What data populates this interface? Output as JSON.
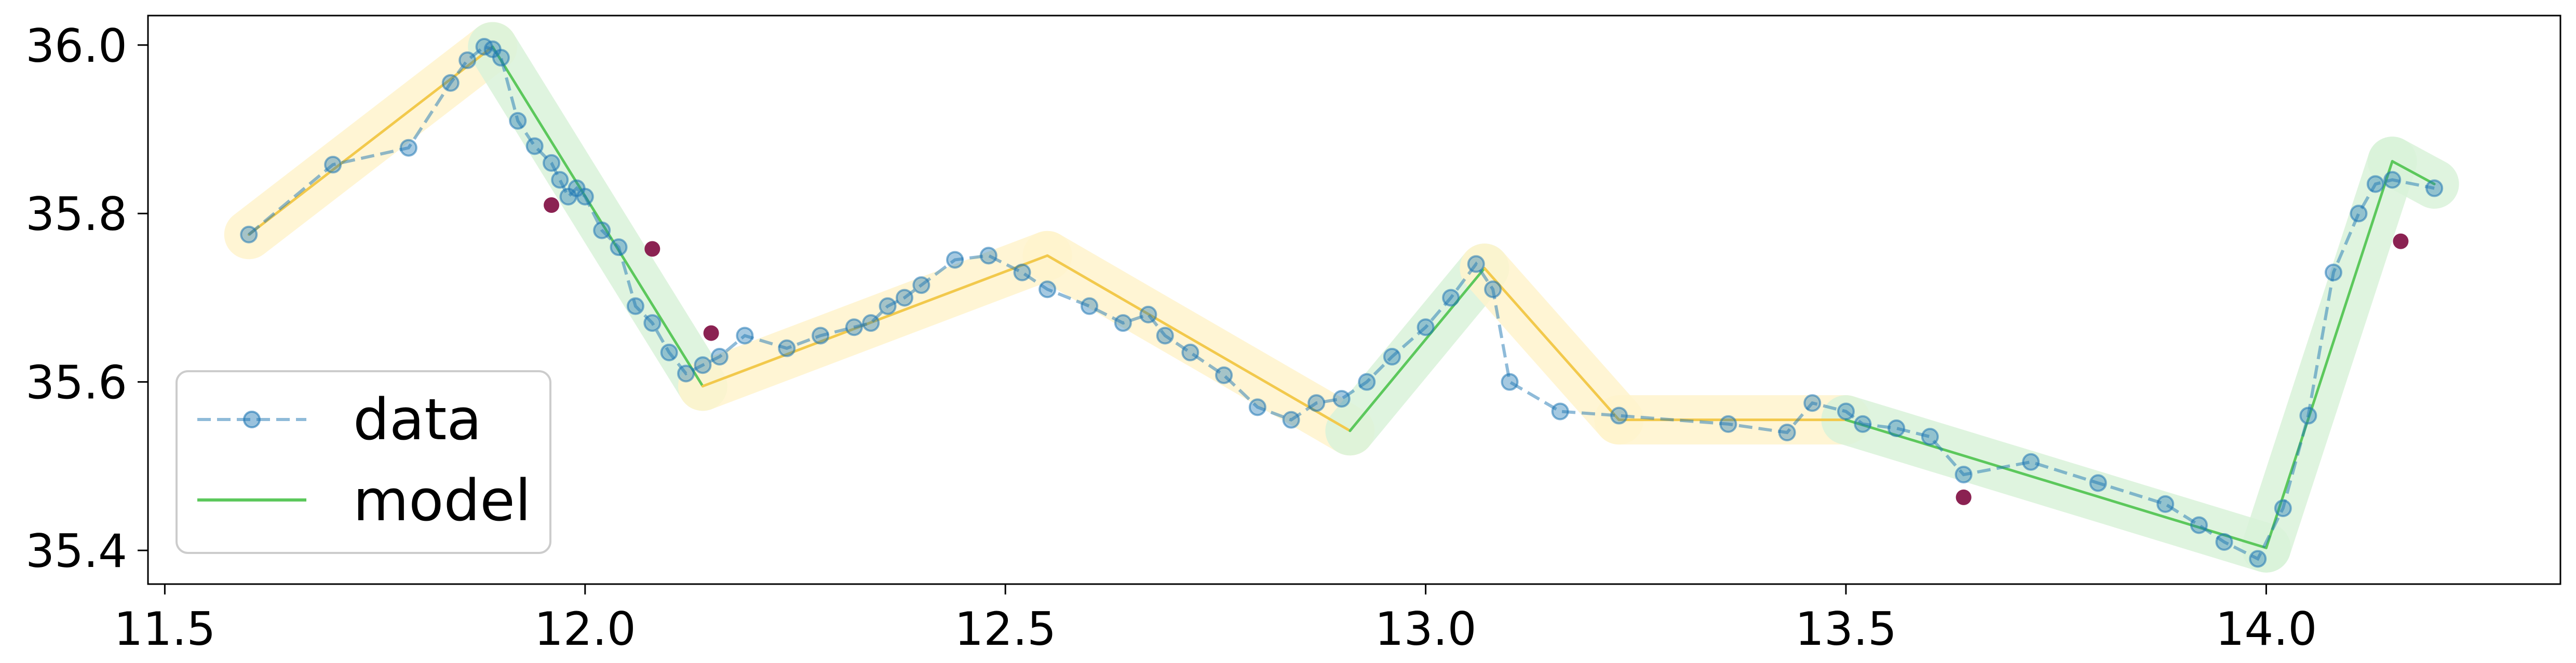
{
  "chart_data": {
    "type": "line",
    "title": "",
    "xlabel": "",
    "ylabel": "",
    "xlim": [
      11.48,
      14.35
    ],
    "ylim": [
      35.36,
      36.035
    ],
    "x_ticks": [
      11.5,
      12.0,
      12.5,
      13.0,
      13.5,
      14.0
    ],
    "x_tick_labels": [
      "11.5",
      "12.0",
      "12.5",
      "13.0",
      "13.5",
      "14.0"
    ],
    "y_ticks": [
      35.4,
      35.6,
      35.8,
      36.0
    ],
    "y_tick_labels": [
      "35.4",
      "35.6",
      "35.8",
      "36.0"
    ],
    "grid": false,
    "legend_position": "lower-left",
    "legend": [
      {
        "label": "data",
        "series": "data"
      },
      {
        "label": "model",
        "series": "model"
      }
    ],
    "series": [
      {
        "name": "data",
        "style": "dashed line with circle markers",
        "color": "#1f77b4",
        "x": [
          11.6,
          11.7,
          11.79,
          11.84,
          11.86,
          11.88,
          11.89,
          11.9,
          11.92,
          11.94,
          11.96,
          11.97,
          11.98,
          11.99,
          12.0,
          12.02,
          12.04,
          12.06,
          12.08,
          12.1,
          12.12,
          12.14,
          12.16,
          12.19,
          12.24,
          12.28,
          12.32,
          12.34,
          12.36,
          12.38,
          12.4,
          12.44,
          12.48,
          12.52,
          12.55,
          12.6,
          12.64,
          12.67,
          12.69,
          12.72,
          12.76,
          12.8,
          12.84,
          12.87,
          12.9,
          12.93,
          12.96,
          13.0,
          13.03,
          13.06,
          13.08,
          13.1,
          13.16,
          13.23,
          13.36,
          13.43,
          13.46,
          13.5,
          13.52,
          13.56,
          13.6,
          13.64,
          13.72,
          13.8,
          13.88,
          13.92,
          13.95,
          13.99,
          14.02,
          14.05,
          14.08,
          14.11,
          14.13,
          14.15,
          14.2
        ],
        "y": [
          35.775,
          35.858,
          35.878,
          35.955,
          35.982,
          35.998,
          35.995,
          35.985,
          35.91,
          35.88,
          35.86,
          35.84,
          35.82,
          35.83,
          35.82,
          35.78,
          35.76,
          35.69,
          35.67,
          35.635,
          35.61,
          35.62,
          35.63,
          35.655,
          35.64,
          35.655,
          35.665,
          35.67,
          35.69,
          35.7,
          35.715,
          35.745,
          35.75,
          35.73,
          35.71,
          35.69,
          35.67,
          35.68,
          35.655,
          35.635,
          35.608,
          35.57,
          35.555,
          35.575,
          35.58,
          35.6,
          35.63,
          35.665,
          35.7,
          35.74,
          35.71,
          35.6,
          35.565,
          35.56,
          35.55,
          35.54,
          35.575,
          35.565,
          35.55,
          35.545,
          35.535,
          35.49,
          35.505,
          35.48,
          35.455,
          35.43,
          35.41,
          35.39,
          35.45,
          35.56,
          35.73,
          35.8,
          35.835,
          35.84,
          35.83
        ]
      },
      {
        "name": "model",
        "style": "solid line",
        "x": [
          11.6,
          11.89,
          12.14,
          12.55,
          12.91,
          13.07,
          13.23,
          13.5,
          14.0,
          14.15,
          14.2
        ],
        "y": [
          35.775,
          35.998,
          35.595,
          35.75,
          35.542,
          35.735,
          35.555,
          35.555,
          35.403,
          35.862,
          35.835
        ],
        "segments": [
          {
            "x": [
              11.6,
              11.89
            ],
            "y": [
              35.775,
              35.998
            ],
            "color": "#f2c94c",
            "band_color": "#fff3cd"
          },
          {
            "x": [
              11.89,
              12.14
            ],
            "y": [
              35.998,
              35.595
            ],
            "color": "#5cc85c",
            "band_color": "#d9f2d9"
          },
          {
            "x": [
              12.14,
              12.55
            ],
            "y": [
              35.595,
              35.75
            ],
            "color": "#f2c94c",
            "band_color": "#fff3cd"
          },
          {
            "x": [
              12.55,
              12.91
            ],
            "y": [
              35.75,
              35.542
            ],
            "color": "#f2c94c",
            "band_color": "#fff3cd"
          },
          {
            "x": [
              12.91,
              13.07
            ],
            "y": [
              35.542,
              35.735
            ],
            "color": "#5cc85c",
            "band_color": "#d9f2d9"
          },
          {
            "x": [
              13.07,
              13.23
            ],
            "y": [
              35.735,
              35.555
            ],
            "color": "#f2c94c",
            "band_color": "#fff3cd"
          },
          {
            "x": [
              13.23,
              13.5
            ],
            "y": [
              35.555,
              35.555
            ],
            "color": "#f2c94c",
            "band_color": "#fff3cd"
          },
          {
            "x": [
              13.5,
              14.0
            ],
            "y": [
              35.555,
              35.403
            ],
            "color": "#5cc85c",
            "band_color": "#d9f2d9"
          },
          {
            "x": [
              14.0,
              14.15
            ],
            "y": [
              35.403,
              35.862
            ],
            "color": "#5cc85c",
            "band_color": "#d9f2d9"
          },
          {
            "x": [
              14.15,
              14.2
            ],
            "y": [
              35.862,
              35.835
            ],
            "color": "#5cc85c",
            "band_color": "#d9f2d9"
          }
        ]
      },
      {
        "name": "outliers",
        "style": "markers only",
        "color": "#8b2252",
        "x": [
          11.96,
          12.08,
          12.15,
          13.64,
          14.16
        ],
        "y": [
          35.81,
          35.758,
          35.658,
          35.463,
          35.767
        ]
      }
    ],
    "colors": {
      "data": "#1f77b4",
      "model_up": "#5cc85c",
      "model_flat": "#f2c94c",
      "band_green": "#d9f2d9",
      "band_yellow": "#fff3cd",
      "outlier": "#8b2252"
    }
  }
}
